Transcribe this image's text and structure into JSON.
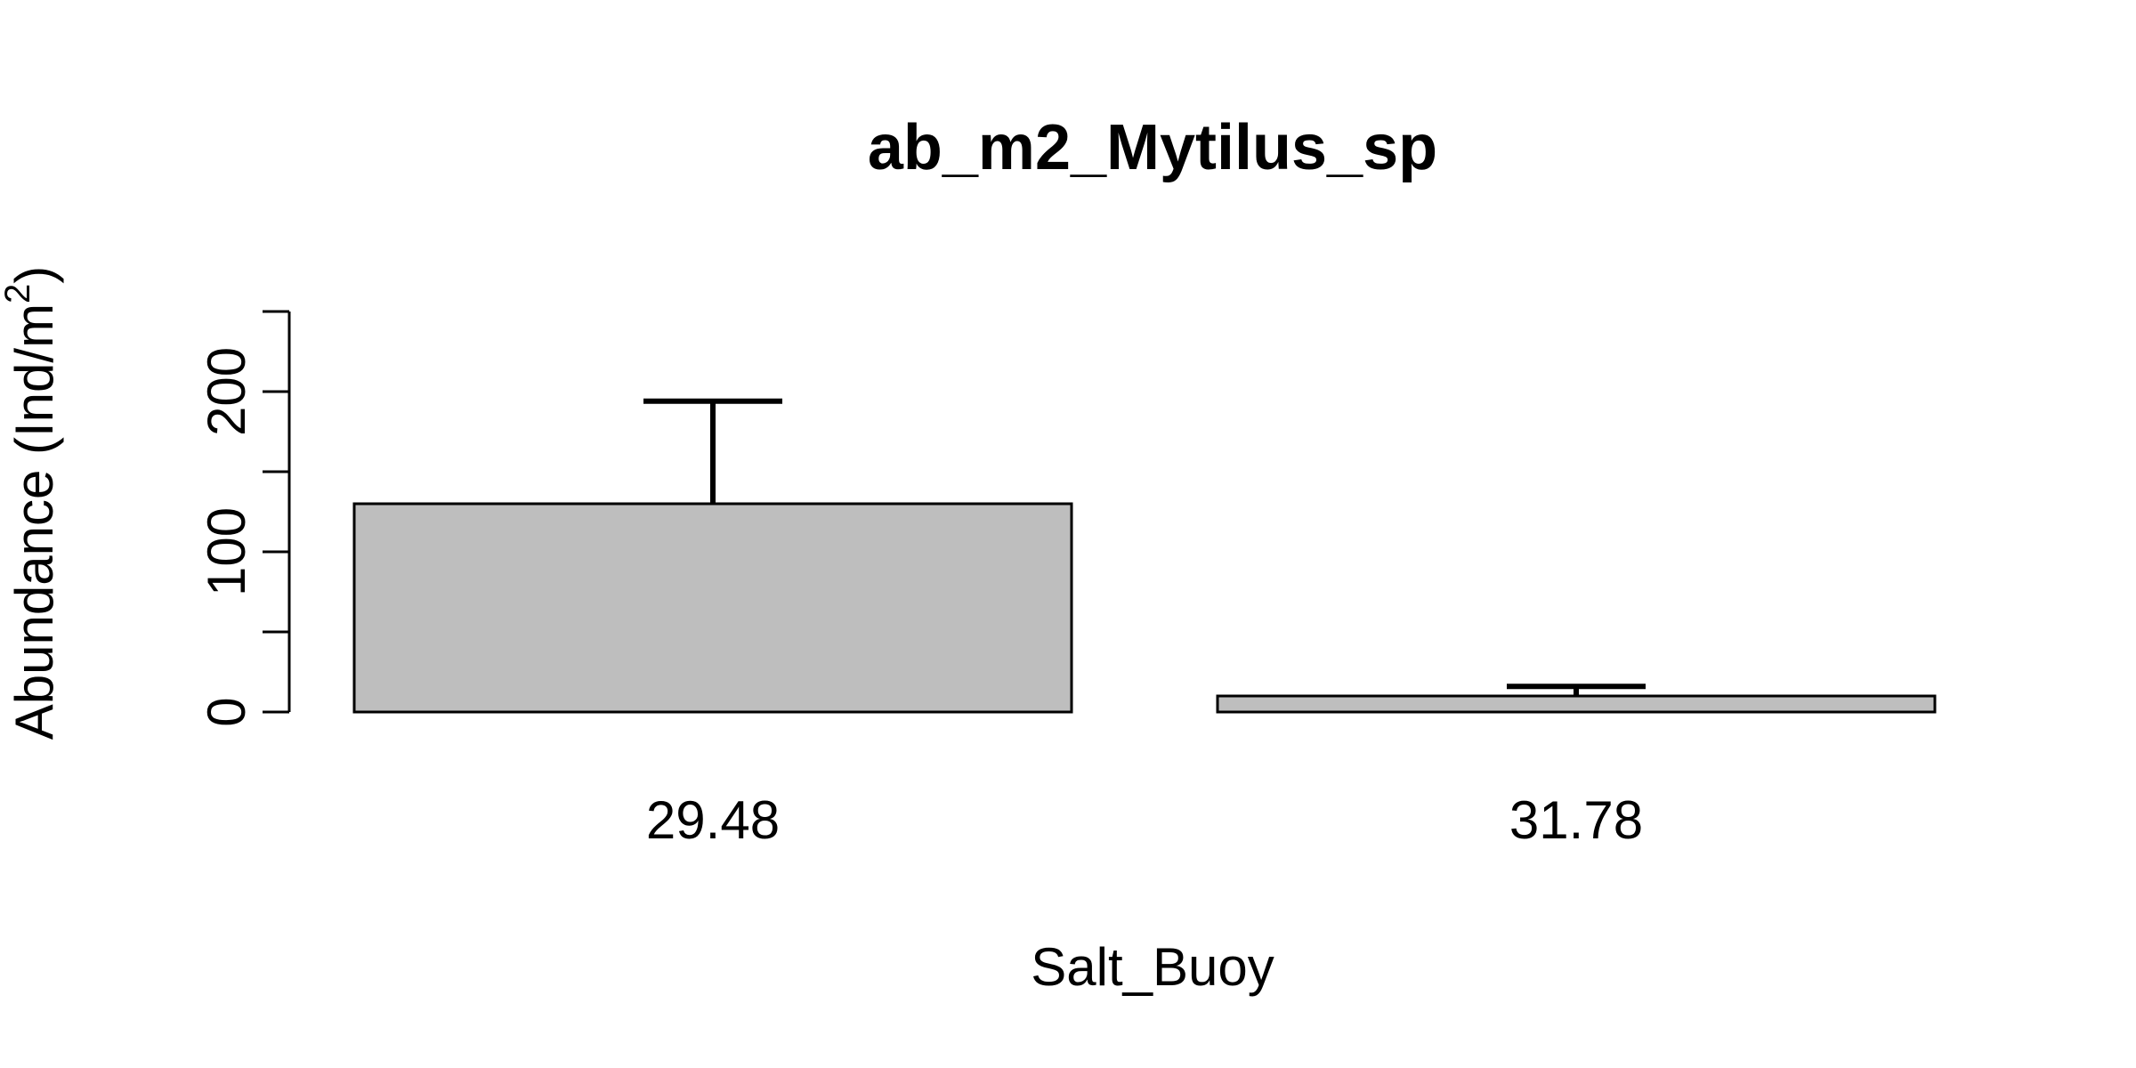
{
  "chart_data": {
    "type": "bar",
    "title": "ab_m2_Mytilus_sp",
    "xlabel": "Salt_Buoy",
    "ylabel": {
      "text": "Abundance (Ind/m",
      "superscript": "2",
      "close": ")"
    },
    "categories": [
      "29.48",
      "31.78"
    ],
    "values": [
      130,
      10
    ],
    "error_upper": [
      194,
      16
    ],
    "ylim": [
      0,
      250
    ],
    "yticks": [
      0,
      50,
      100,
      150,
      200,
      250
    ],
    "ytick_labels": [
      "0",
      "",
      "100",
      "",
      "200",
      ""
    ],
    "bar_color": "#bebebe",
    "bar_edge_color": "#000000",
    "grid": false,
    "legend": "none"
  }
}
